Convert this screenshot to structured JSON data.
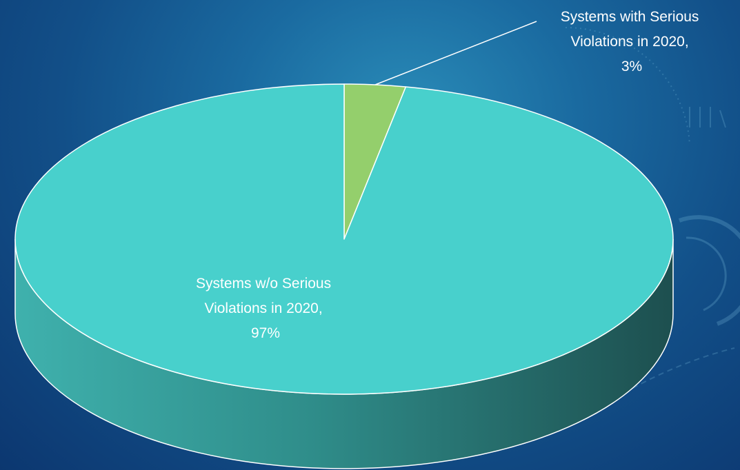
{
  "chart_data": {
    "type": "pie",
    "style": "3d",
    "title": "",
    "slices": [
      {
        "label_lines": [
          "Systems w/o Serious",
          "Violations in 2020,"
        ],
        "percent_label": "97%",
        "value": 97,
        "color": "#48d0cc"
      },
      {
        "label_lines": [
          "Systems with Serious",
          "Violations in 2020,"
        ],
        "percent_label": "3%",
        "value": 3,
        "color": "#94cf6c"
      }
    ],
    "legend": "none",
    "outline_color": "#ffffff"
  }
}
